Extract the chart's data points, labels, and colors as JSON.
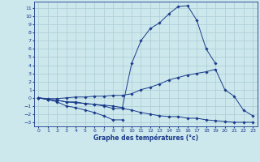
{
  "xlabel": "Graphe des températures (°c)",
  "ylim": [
    -3.5,
    11.8
  ],
  "xlim": [
    -0.5,
    23.5
  ],
  "yticks": [
    -3,
    -2,
    -1,
    0,
    1,
    2,
    3,
    4,
    5,
    6,
    7,
    8,
    9,
    10,
    11
  ],
  "xticks": [
    0,
    1,
    2,
    3,
    4,
    5,
    6,
    7,
    8,
    9,
    10,
    11,
    12,
    13,
    14,
    15,
    16,
    17,
    18,
    19,
    20,
    21,
    22,
    23
  ],
  "bg_color": "#cce8ec",
  "grid_color": "#b0d0d8",
  "line_color": "#1a3a8c",
  "line1": [
    0,
    -0.2,
    -0.5,
    -1.0,
    -1.2,
    -1.5,
    -1.8,
    -2.2,
    -2.7,
    -2.7,
    null,
    null,
    null,
    null,
    null,
    null,
    null,
    null,
    null,
    null,
    null,
    null,
    null,
    null
  ],
  "line2": [
    0,
    -0.2,
    -0.3,
    -0.5,
    -0.5,
    -0.7,
    -0.8,
    -1.0,
    -1.3,
    -1.3,
    -1.5,
    -1.8,
    -2.0,
    -2.2,
    -2.3,
    -2.3,
    -2.5,
    -2.5,
    -2.7,
    -2.8,
    -2.9,
    -3.0,
    -3.0,
    -3.0
  ],
  "line3": [
    0,
    -0.1,
    -0.1,
    0.0,
    0.1,
    0.1,
    0.2,
    0.2,
    0.3,
    0.3,
    0.5,
    1.0,
    1.3,
    1.7,
    2.2,
    2.5,
    2.8,
    3.0,
    3.2,
    3.5,
    1.0,
    0.2,
    -1.5,
    -2.2
  ],
  "line4": [
    0,
    -0.2,
    -0.3,
    -0.5,
    -0.6,
    -0.7,
    -0.8,
    -0.9,
    -1.0,
    -1.2,
    4.2,
    7.0,
    8.5,
    9.2,
    10.3,
    11.2,
    11.3,
    9.5,
    6.0,
    4.2,
    null,
    null,
    null,
    null
  ]
}
